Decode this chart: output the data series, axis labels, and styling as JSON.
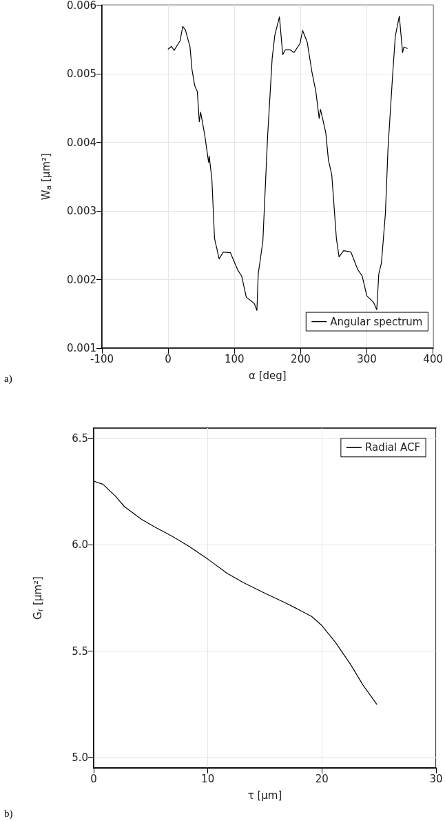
{
  "chart_data": [
    {
      "type": "line",
      "xlabel": "α [deg]",
      "ylabel": "W$_{a}$ [µm²]",
      "annotations": [
        "a)"
      ],
      "xlim": [
        -100,
        400
      ],
      "xticks": [
        -100,
        0,
        100,
        200,
        300,
        400
      ],
      "ylim": [
        0.001,
        0.006
      ],
      "yticks": [
        0.001,
        0.002,
        0.003,
        0.004,
        0.005,
        0.006
      ],
      "grid": true,
      "legend": "bottom right",
      "marker": "none",
      "line_style": "solid",
      "series": [
        {
          "name": "Angular spectrum",
          "color": "#000000",
          "x": [
            0,
            5,
            9,
            14,
            18,
            22,
            26,
            33,
            36,
            40,
            44,
            47,
            49,
            55,
            61,
            62,
            66,
            70,
            77,
            83,
            94,
            105,
            111,
            118,
            125,
            130,
            134,
            136,
            143,
            150,
            157,
            161,
            168,
            173,
            177,
            184,
            190,
            199,
            203,
            210,
            217,
            223,
            228,
            230,
            238,
            242,
            247,
            254,
            258,
            265,
            276,
            286,
            293,
            300,
            310,
            315,
            318,
            322,
            328,
            332,
            339,
            343,
            349,
            354,
            356,
            361
          ],
          "values": [
            0.00536,
            0.0054,
            0.00534,
            0.00542,
            0.00548,
            0.00569,
            0.00564,
            0.00539,
            0.00506,
            0.00483,
            0.00474,
            0.0043,
            0.00444,
            0.00412,
            0.00371,
            0.0038,
            0.00346,
            0.0026,
            0.0023,
            0.0024,
            0.00239,
            0.00214,
            0.00205,
            0.00174,
            0.00169,
            0.00165,
            0.00155,
            0.00208,
            0.00256,
            0.00406,
            0.00522,
            0.00556,
            0.00583,
            0.00528,
            0.00535,
            0.00535,
            0.00531,
            0.00544,
            0.00563,
            0.00546,
            0.00503,
            0.00474,
            0.00435,
            0.00448,
            0.00414,
            0.00374,
            0.00353,
            0.0026,
            0.00233,
            0.00242,
            0.0024,
            0.00215,
            0.00205,
            0.00176,
            0.00167,
            0.00156,
            0.00208,
            0.00224,
            0.00296,
            0.00392,
            0.00499,
            0.00555,
            0.00584,
            0.00531,
            0.00539,
            0.00537
          ]
        }
      ]
    },
    {
      "type": "line",
      "xlabel": "τ [µm]",
      "ylabel": "G$_{r}$ [µm²]",
      "annotations": [
        "b)"
      ],
      "xlim": [
        0,
        30
      ],
      "xticks": [
        0,
        10,
        20,
        30
      ],
      "ylim": [
        4.95,
        6.55
      ],
      "yticks": [
        {
          "value": 5.0,
          "label": "5.0"
        },
        5.5,
        {
          "value": 6.0,
          "label": "6.0"
        },
        6.5
      ],
      "grid": true,
      "legend": "top right",
      "marker": "none",
      "line_style": "solid",
      "series": [
        {
          "name": "Radial ACF",
          "color": "#000000",
          "x": [
            0,
            0.8,
            1.9,
            2.7,
            4.2,
            5.3,
            6.8,
            8.3,
            10,
            11.7,
            13.1,
            14.9,
            16.6,
            17.8,
            19.1,
            20,
            21.2,
            22.5,
            23.6,
            24.8
          ],
          "values": [
            6.3,
            6.286,
            6.23,
            6.18,
            6.12,
            6.086,
            6.043,
            5.995,
            5.933,
            5.866,
            5.823,
            5.775,
            5.732,
            5.7,
            5.663,
            5.62,
            5.54,
            5.438,
            5.34,
            5.25
          ]
        }
      ]
    }
  ]
}
